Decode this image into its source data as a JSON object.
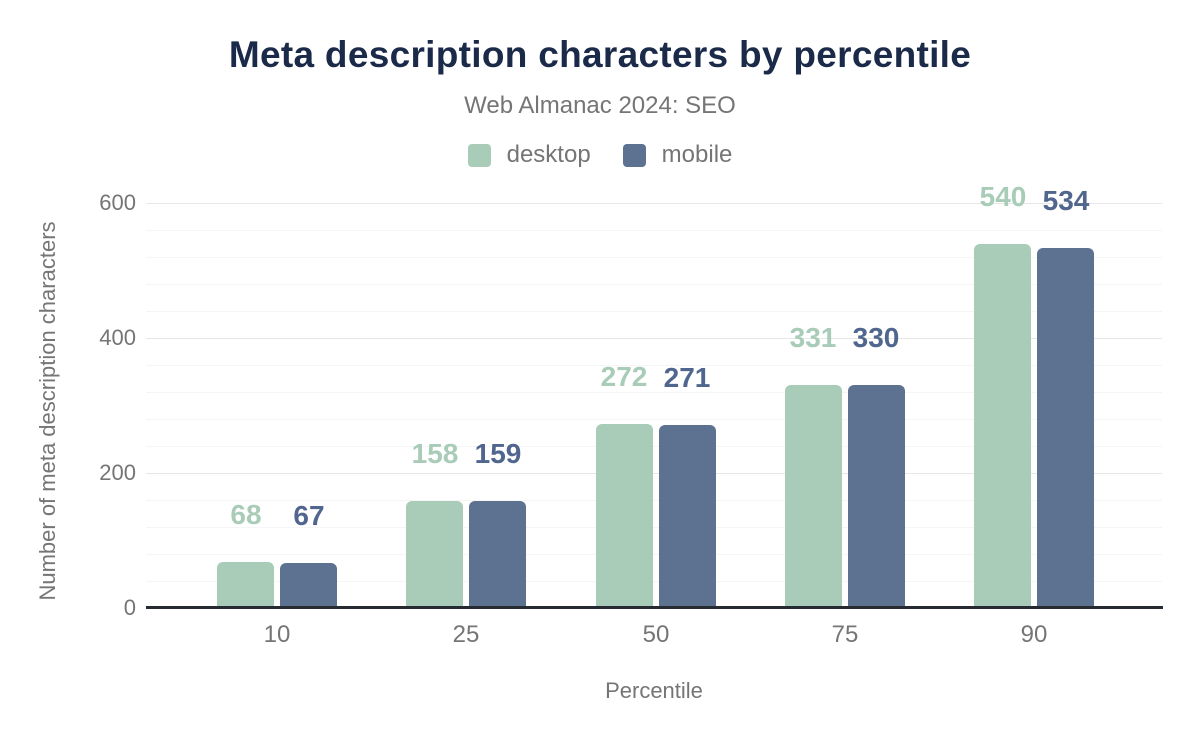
{
  "title": "Meta description characters by percentile",
  "subtitle": "Web Almanac 2024: SEO",
  "x_axis_label": "Percentile",
  "y_axis_label": "Number of meta description characters",
  "legend": [
    {
      "label": "desktop",
      "color": "#a8ccb7"
    },
    {
      "label": "mobile",
      "color": "#5d7191"
    }
  ],
  "chart_data": {
    "type": "bar",
    "title": "Meta description characters by percentile",
    "subtitle": "Web Almanac 2024: SEO",
    "categories": [
      "10",
      "25",
      "50",
      "75",
      "90"
    ],
    "series": [
      {
        "name": "desktop",
        "color": "#a8ccb7",
        "label_color": "#a8ccb7",
        "values": [
          68,
          158,
          272,
          331,
          540
        ]
      },
      {
        "name": "mobile",
        "color": "#5d7191",
        "label_color": "#50668e",
        "values": [
          67,
          159,
          271,
          330,
          534
        ]
      }
    ],
    "xlabel": "Percentile",
    "ylabel": "Number of meta description characters",
    "ylim": [
      0,
      600
    ],
    "yticks": [
      0,
      200,
      400,
      600
    ],
    "minor_grid_step": 40,
    "grid": true,
    "legend_position": "top",
    "data_labels": true
  },
  "colors": {
    "background": "#ffffff",
    "title": "#1b2a49",
    "axis_text": "#757575",
    "grid_major": "#e7e7e7",
    "grid_minor": "#f5f5f5",
    "baseline": "#262a31",
    "desktop": "#a8ccb7",
    "mobile": "#5d7191",
    "desktop_label": "#a8ccb7",
    "mobile_label": "#50668e"
  }
}
